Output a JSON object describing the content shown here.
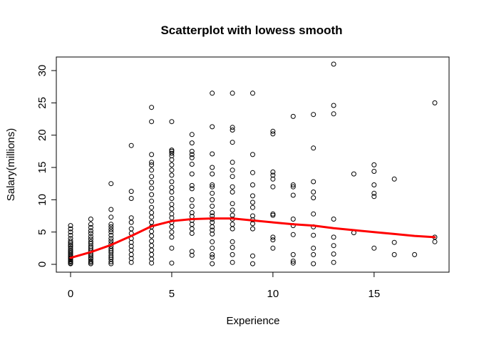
{
  "chart_data": {
    "type": "scatter",
    "title": "Scatterplot with lowess smooth",
    "xlabel": "Experience",
    "ylabel": "Salary(millions)",
    "xlim": [
      0,
      18
    ],
    "ylim": [
      0,
      31
    ],
    "xticks": [
      0,
      5,
      10,
      15
    ],
    "yticks": [
      0,
      5,
      10,
      15,
      20,
      25,
      30
    ],
    "grid": false,
    "legend": "none",
    "point_color": "#000000",
    "smooth_color": "#ff0000",
    "points": [
      [
        0,
        0.1
      ],
      [
        0,
        0.2
      ],
      [
        0,
        0.4
      ],
      [
        0,
        0.5
      ],
      [
        0,
        0.7
      ],
      [
        0,
        0.9
      ],
      [
        0,
        1.0
      ],
      [
        0,
        1.2
      ],
      [
        0,
        1.4
      ],
      [
        0,
        1.6
      ],
      [
        0,
        1.8
      ],
      [
        0,
        2.0
      ],
      [
        0,
        2.2
      ],
      [
        0,
        2.5
      ],
      [
        0,
        2.8
      ],
      [
        0,
        3.0
      ],
      [
        0,
        3.3
      ],
      [
        0,
        3.6
      ],
      [
        0,
        4.0
      ],
      [
        0,
        4.5
      ],
      [
        0,
        5.0
      ],
      [
        0,
        5.5
      ],
      [
        0,
        6.0
      ],
      [
        1,
        0.1
      ],
      [
        1,
        0.3
      ],
      [
        1,
        0.5
      ],
      [
        1,
        0.8
      ],
      [
        1,
        1.0
      ],
      [
        1,
        1.3
      ],
      [
        1,
        1.6
      ],
      [
        1,
        1.9
      ],
      [
        1,
        2.2
      ],
      [
        1,
        2.5
      ],
      [
        1,
        2.8
      ],
      [
        1,
        3.2
      ],
      [
        1,
        3.5
      ],
      [
        1,
        3.9
      ],
      [
        1,
        4.3
      ],
      [
        1,
        4.8
      ],
      [
        1,
        5.2
      ],
      [
        1,
        5.7
      ],
      [
        1,
        6.2
      ],
      [
        1,
        7.0
      ],
      [
        2,
        0.1
      ],
      [
        2,
        0.4
      ],
      [
        2,
        0.8
      ],
      [
        2,
        1.1
      ],
      [
        2,
        1.4
      ],
      [
        2,
        1.8
      ],
      [
        2,
        2.1
      ],
      [
        2,
        2.4
      ],
      [
        2,
        2.8
      ],
      [
        2,
        3.2
      ],
      [
        2,
        3.6
      ],
      [
        2,
        4.0
      ],
      [
        2,
        4.5
      ],
      [
        2,
        5.0
      ],
      [
        2,
        5.4
      ],
      [
        2,
        5.8
      ],
      [
        2,
        6.2
      ],
      [
        2,
        7.3
      ],
      [
        2,
        8.5
      ],
      [
        2,
        12.5
      ],
      [
        3,
        0.3
      ],
      [
        3,
        0.9
      ],
      [
        3,
        1.5
      ],
      [
        3,
        2.2
      ],
      [
        3,
        2.8
      ],
      [
        3,
        3.4
      ],
      [
        3,
        4.0
      ],
      [
        3,
        4.8
      ],
      [
        3,
        5.5
      ],
      [
        3,
        6.5
      ],
      [
        3,
        7.2
      ],
      [
        3,
        10.2
      ],
      [
        3,
        11.3
      ],
      [
        3,
        18.4
      ],
      [
        4,
        0.2
      ],
      [
        4,
        0.8
      ],
      [
        4,
        1.5
      ],
      [
        4,
        2.2
      ],
      [
        4,
        2.9
      ],
      [
        4,
        3.6
      ],
      [
        4,
        4.4
      ],
      [
        4,
        5.1
      ],
      [
        4,
        5.8
      ],
      [
        4,
        6.5
      ],
      [
        4,
        7.3
      ],
      [
        4,
        8.0
      ],
      [
        4,
        8.8
      ],
      [
        4,
        9.8
      ],
      [
        4,
        10.8
      ],
      [
        4,
        11.8
      ],
      [
        4,
        12.7
      ],
      [
        4,
        13.6
      ],
      [
        4,
        14.6
      ],
      [
        4,
        15.4
      ],
      [
        4,
        15.8
      ],
      [
        4,
        17.0
      ],
      [
        4,
        22.1
      ],
      [
        4,
        24.3
      ],
      [
        5,
        0.2
      ],
      [
        5,
        2.5
      ],
      [
        5,
        4.2
      ],
      [
        5,
        5.0
      ],
      [
        5,
        5.8
      ],
      [
        5,
        6.5
      ],
      [
        5,
        7.2
      ],
      [
        5,
        7.8
      ],
      [
        5,
        8.6
      ],
      [
        5,
        9.3
      ],
      [
        5,
        10.2
      ],
      [
        5,
        11.2
      ],
      [
        5,
        11.9
      ],
      [
        5,
        12.8
      ],
      [
        5,
        13.8
      ],
      [
        5,
        14.6
      ],
      [
        5,
        15.4
      ],
      [
        5,
        16.2
      ],
      [
        5,
        16.8
      ],
      [
        5,
        17.2
      ],
      [
        5,
        17.5
      ],
      [
        5,
        17.7
      ],
      [
        5,
        22.1
      ],
      [
        6,
        1.4
      ],
      [
        6,
        2.0
      ],
      [
        6,
        4.8
      ],
      [
        6,
        5.5
      ],
      [
        6,
        6.2
      ],
      [
        6,
        6.8
      ],
      [
        6,
        7.4
      ],
      [
        6,
        8.0
      ],
      [
        6,
        9.0
      ],
      [
        6,
        10.0
      ],
      [
        6,
        11.7
      ],
      [
        6,
        12.2
      ],
      [
        6,
        14.0
      ],
      [
        6,
        15.5
      ],
      [
        6,
        16.5
      ],
      [
        6,
        17.0
      ],
      [
        6,
        17.5
      ],
      [
        6,
        18.8
      ],
      [
        6,
        20.1
      ],
      [
        7,
        0.1
      ],
      [
        7,
        1.1
      ],
      [
        7,
        1.5
      ],
      [
        7,
        2.5
      ],
      [
        7,
        3.5
      ],
      [
        7,
        4.7
      ],
      [
        7,
        5.3
      ],
      [
        7,
        5.8
      ],
      [
        7,
        6.5
      ],
      [
        7,
        7.0
      ],
      [
        7,
        7.5
      ],
      [
        7,
        8.0
      ],
      [
        7,
        9.0
      ],
      [
        7,
        10.0
      ],
      [
        7,
        11.0
      ],
      [
        7,
        12.0
      ],
      [
        7,
        12.3
      ],
      [
        7,
        14.0
      ],
      [
        7,
        15.0
      ],
      [
        7,
        17.1
      ],
      [
        7,
        21.3
      ],
      [
        7,
        26.5
      ],
      [
        8,
        0.3
      ],
      [
        8,
        1.5
      ],
      [
        8,
        2.6
      ],
      [
        8,
        3.5
      ],
      [
        8,
        5.5
      ],
      [
        8,
        6.2
      ],
      [
        8,
        7.0
      ],
      [
        8,
        7.6
      ],
      [
        8,
        8.4
      ],
      [
        8,
        9.4
      ],
      [
        8,
        11.2
      ],
      [
        8,
        12.0
      ],
      [
        8,
        13.6
      ],
      [
        8,
        14.6
      ],
      [
        8,
        15.8
      ],
      [
        8,
        18.9
      ],
      [
        8,
        20.8
      ],
      [
        8,
        21.2
      ],
      [
        8,
        26.5
      ],
      [
        9,
        0.1
      ],
      [
        9,
        1.3
      ],
      [
        9,
        5.5
      ],
      [
        9,
        6.3
      ],
      [
        9,
        6.9
      ],
      [
        9,
        7.5
      ],
      [
        9,
        8.8
      ],
      [
        9,
        9.6
      ],
      [
        9,
        10.6
      ],
      [
        9,
        12.3
      ],
      [
        9,
        14.2
      ],
      [
        9,
        17.0
      ],
      [
        9,
        26.5
      ],
      [
        10,
        2.5
      ],
      [
        10,
        3.8
      ],
      [
        10,
        4.2
      ],
      [
        10,
        7.6
      ],
      [
        10,
        7.8
      ],
      [
        10,
        12.0
      ],
      [
        10,
        13.2
      ],
      [
        10,
        13.8
      ],
      [
        10,
        14.3
      ],
      [
        10,
        20.2
      ],
      [
        10,
        20.6
      ],
      [
        11,
        0.2
      ],
      [
        11,
        0.5
      ],
      [
        11,
        1.5
      ],
      [
        11,
        4.6
      ],
      [
        11,
        6.0
      ],
      [
        11,
        7.0
      ],
      [
        11,
        10.7
      ],
      [
        11,
        12.0
      ],
      [
        11,
        12.3
      ],
      [
        11,
        22.9
      ],
      [
        12,
        0.1
      ],
      [
        12,
        1.5
      ],
      [
        12,
        2.5
      ],
      [
        12,
        4.5
      ],
      [
        12,
        5.8
      ],
      [
        12,
        7.8
      ],
      [
        12,
        10.3
      ],
      [
        12,
        11.2
      ],
      [
        12,
        12.8
      ],
      [
        12,
        18.0
      ],
      [
        12,
        23.2
      ],
      [
        13,
        0.3
      ],
      [
        13,
        1.6
      ],
      [
        13,
        2.9
      ],
      [
        13,
        4.2
      ],
      [
        13,
        7.0
      ],
      [
        13,
        23.3
      ],
      [
        13,
        24.6
      ],
      [
        13,
        31.0
      ],
      [
        14,
        4.9
      ],
      [
        14,
        14.0
      ],
      [
        15,
        2.5
      ],
      [
        15,
        10.5
      ],
      [
        15,
        11.0
      ],
      [
        15,
        12.3
      ],
      [
        15,
        14.4
      ],
      [
        15,
        15.4
      ],
      [
        16,
        1.5
      ],
      [
        16,
        3.4
      ],
      [
        16,
        13.2
      ],
      [
        17,
        1.5
      ],
      [
        18,
        3.5
      ],
      [
        18,
        4.2
      ],
      [
        18,
        25.0
      ]
    ],
    "lowess": [
      [
        0,
        1.0
      ],
      [
        1,
        1.9
      ],
      [
        2,
        3.0
      ],
      [
        3,
        4.4
      ],
      [
        4,
        5.9
      ],
      [
        5,
        6.7
      ],
      [
        6,
        7.0
      ],
      [
        7,
        7.1
      ],
      [
        8,
        7.1
      ],
      [
        9,
        6.8
      ],
      [
        10,
        6.5
      ],
      [
        11,
        6.2
      ],
      [
        12,
        6.0
      ],
      [
        13,
        5.6
      ],
      [
        14,
        5.3
      ],
      [
        15,
        5.0
      ],
      [
        16,
        4.7
      ],
      [
        17,
        4.4
      ],
      [
        18,
        4.2
      ]
    ]
  }
}
